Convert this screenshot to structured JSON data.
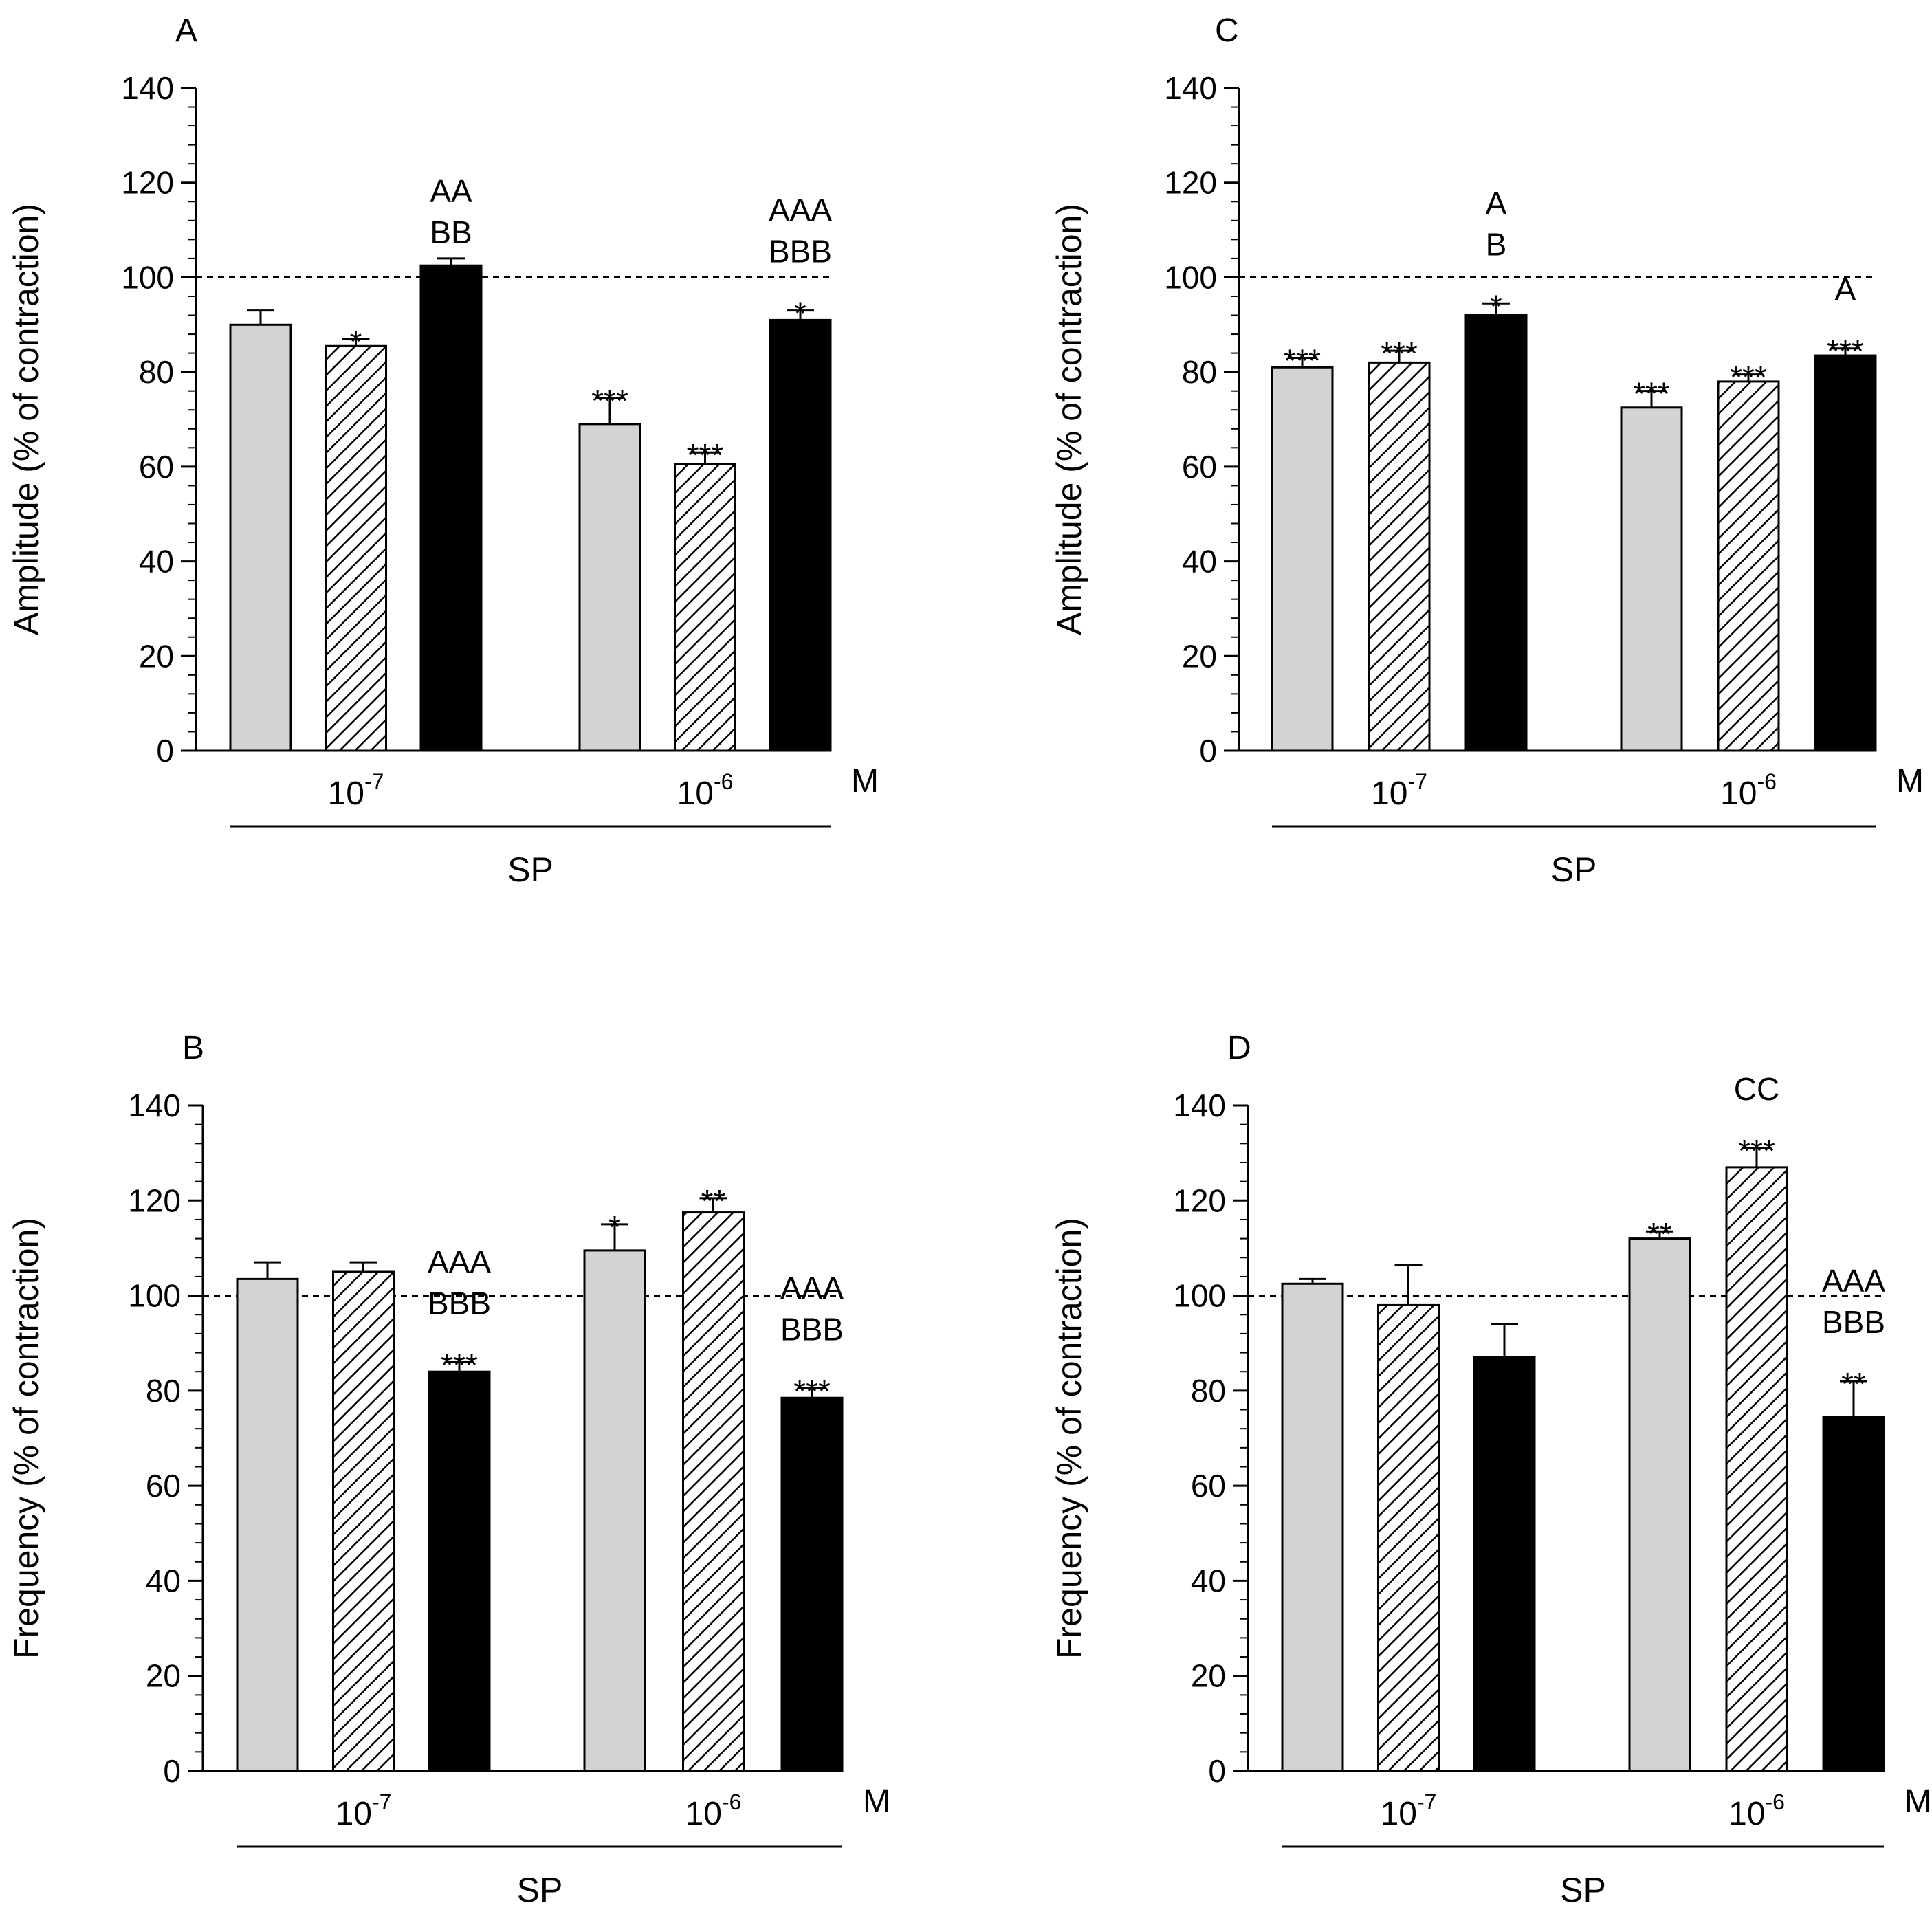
{
  "colors": {
    "gray": "#d3d3d3",
    "hatched_stroke": "#000000",
    "black": "#000000",
    "background": "#ffffff"
  },
  "chart_data": [
    {
      "panel": "A",
      "type": "bar",
      "ylabel": "Amplitude (% of contraction)",
      "ylim": [
        0,
        140
      ],
      "yticks": [
        "0",
        "20",
        "40",
        "60",
        "80",
        "100",
        "120",
        "140"
      ],
      "reference_line": 100,
      "categories": [
        {
          "base": "10",
          "exp": "-7"
        },
        {
          "base": "10",
          "exp": "-6"
        }
      ],
      "unit": "M",
      "group_label": "SP",
      "series": [
        {
          "fill": "gray",
          "values": [
            90,
            69
          ],
          "errors": [
            3,
            5.5
          ]
        },
        {
          "fill": "hatched",
          "values": [
            85.5,
            60.5
          ],
          "errors": [
            1.5,
            2.5
          ]
        },
        {
          "fill": "black",
          "values": [
            102.5,
            91
          ],
          "errors": [
            1.5,
            2
          ]
        }
      ],
      "annotations": [
        {
          "cat": 0,
          "series": 0,
          "lines": []
        },
        {
          "cat": 0,
          "series": 1,
          "lines": [
            "*"
          ]
        },
        {
          "cat": 0,
          "series": 2,
          "lines": [
            "AA",
            "BB"
          ]
        },
        {
          "cat": 1,
          "series": 0,
          "lines": [
            "***"
          ]
        },
        {
          "cat": 1,
          "series": 1,
          "lines": [
            "***"
          ]
        },
        {
          "cat": 1,
          "series": 2,
          "lines": [
            "AAA",
            "BBB",
            "*"
          ]
        }
      ]
    },
    {
      "panel": "C",
      "type": "bar",
      "ylabel": "Amplitude (% of contraction)",
      "ylim": [
        0,
        140
      ],
      "yticks": [
        "0",
        "20",
        "40",
        "60",
        "80",
        "100",
        "120",
        "140"
      ],
      "reference_line": 100,
      "categories": [
        {
          "base": "10",
          "exp": "-7"
        },
        {
          "base": "10",
          "exp": "-6"
        }
      ],
      "unit": "M",
      "group_label": "SP",
      "series": [
        {
          "fill": "gray",
          "values": [
            81,
            72.5
          ],
          "errors": [
            2,
            3.5
          ]
        },
        {
          "fill": "hatched",
          "values": [
            82,
            78
          ],
          "errors": [
            2.5,
            1.5
          ]
        },
        {
          "fill": "black",
          "values": [
            92,
            83.5
          ],
          "errors": [
            2.5,
            1.5
          ]
        }
      ],
      "annotations": [
        {
          "cat": 0,
          "series": 0,
          "lines": [
            "***"
          ]
        },
        {
          "cat": 0,
          "series": 1,
          "lines": [
            "***"
          ]
        },
        {
          "cat": 0,
          "series": 2,
          "lines": [
            "A",
            "B",
            "*"
          ]
        },
        {
          "cat": 1,
          "series": 0,
          "lines": [
            "***"
          ]
        },
        {
          "cat": 1,
          "series": 1,
          "lines": [
            "***"
          ]
        },
        {
          "cat": 1,
          "series": 2,
          "lines": [
            "A",
            "***"
          ]
        }
      ]
    },
    {
      "panel": "B",
      "type": "bar",
      "ylabel": "Frequency (% of contraction)",
      "ylim": [
        0,
        140
      ],
      "yticks": [
        "0",
        "20",
        "40",
        "60",
        "80",
        "100",
        "120",
        "140"
      ],
      "reference_line": 100,
      "categories": [
        {
          "base": "10",
          "exp": "-7"
        },
        {
          "base": "10",
          "exp": "-6"
        }
      ],
      "unit": "M",
      "group_label": "SP",
      "series": [
        {
          "fill": "gray",
          "values": [
            103.5,
            109.5
          ],
          "errors": [
            3.5,
            5.5
          ]
        },
        {
          "fill": "hatched",
          "values": [
            105,
            117.5
          ],
          "errors": [
            2,
            3
          ]
        },
        {
          "fill": "black",
          "values": [
            84,
            78.5
          ],
          "errors": [
            2,
            2
          ]
        }
      ],
      "annotations": [
        {
          "cat": 0,
          "series": 0,
          "lines": []
        },
        {
          "cat": 0,
          "series": 1,
          "lines": []
        },
        {
          "cat": 0,
          "series": 2,
          "lines": [
            "AAA",
            "BBB",
            "***"
          ]
        },
        {
          "cat": 1,
          "series": 0,
          "lines": [
            "*"
          ]
        },
        {
          "cat": 1,
          "series": 1,
          "lines": [
            "**"
          ]
        },
        {
          "cat": 1,
          "series": 2,
          "lines": [
            "AAA",
            "BBB",
            "***"
          ]
        }
      ]
    },
    {
      "panel": "D",
      "type": "bar",
      "ylabel": "Frequency (% of contraction)",
      "ylim": [
        0,
        140
      ],
      "yticks": [
        "0",
        "20",
        "40",
        "60",
        "80",
        "100",
        "120",
        "140"
      ],
      "reference_line": 100,
      "categories": [
        {
          "base": "10",
          "exp": "-7"
        },
        {
          "base": "10",
          "exp": "-6"
        }
      ],
      "unit": "M",
      "group_label": "SP",
      "series": [
        {
          "fill": "gray",
          "values": [
            102.5,
            112
          ],
          "errors": [
            1,
            1.5
          ]
        },
        {
          "fill": "hatched",
          "values": [
            98,
            127
          ],
          "errors": [
            8.5,
            4
          ]
        },
        {
          "fill": "black",
          "values": [
            87,
            74.5
          ],
          "errors": [
            7,
            7.5
          ]
        }
      ],
      "annotations": [
        {
          "cat": 0,
          "series": 0,
          "lines": []
        },
        {
          "cat": 0,
          "series": 1,
          "lines": []
        },
        {
          "cat": 0,
          "series": 2,
          "lines": []
        },
        {
          "cat": 1,
          "series": 0,
          "lines": [
            "**"
          ]
        },
        {
          "cat": 1,
          "series": 1,
          "lines": [
            "CC",
            "***"
          ]
        },
        {
          "cat": 1,
          "series": 2,
          "lines": [
            "AAA",
            "BBB",
            "**"
          ]
        }
      ]
    }
  ]
}
